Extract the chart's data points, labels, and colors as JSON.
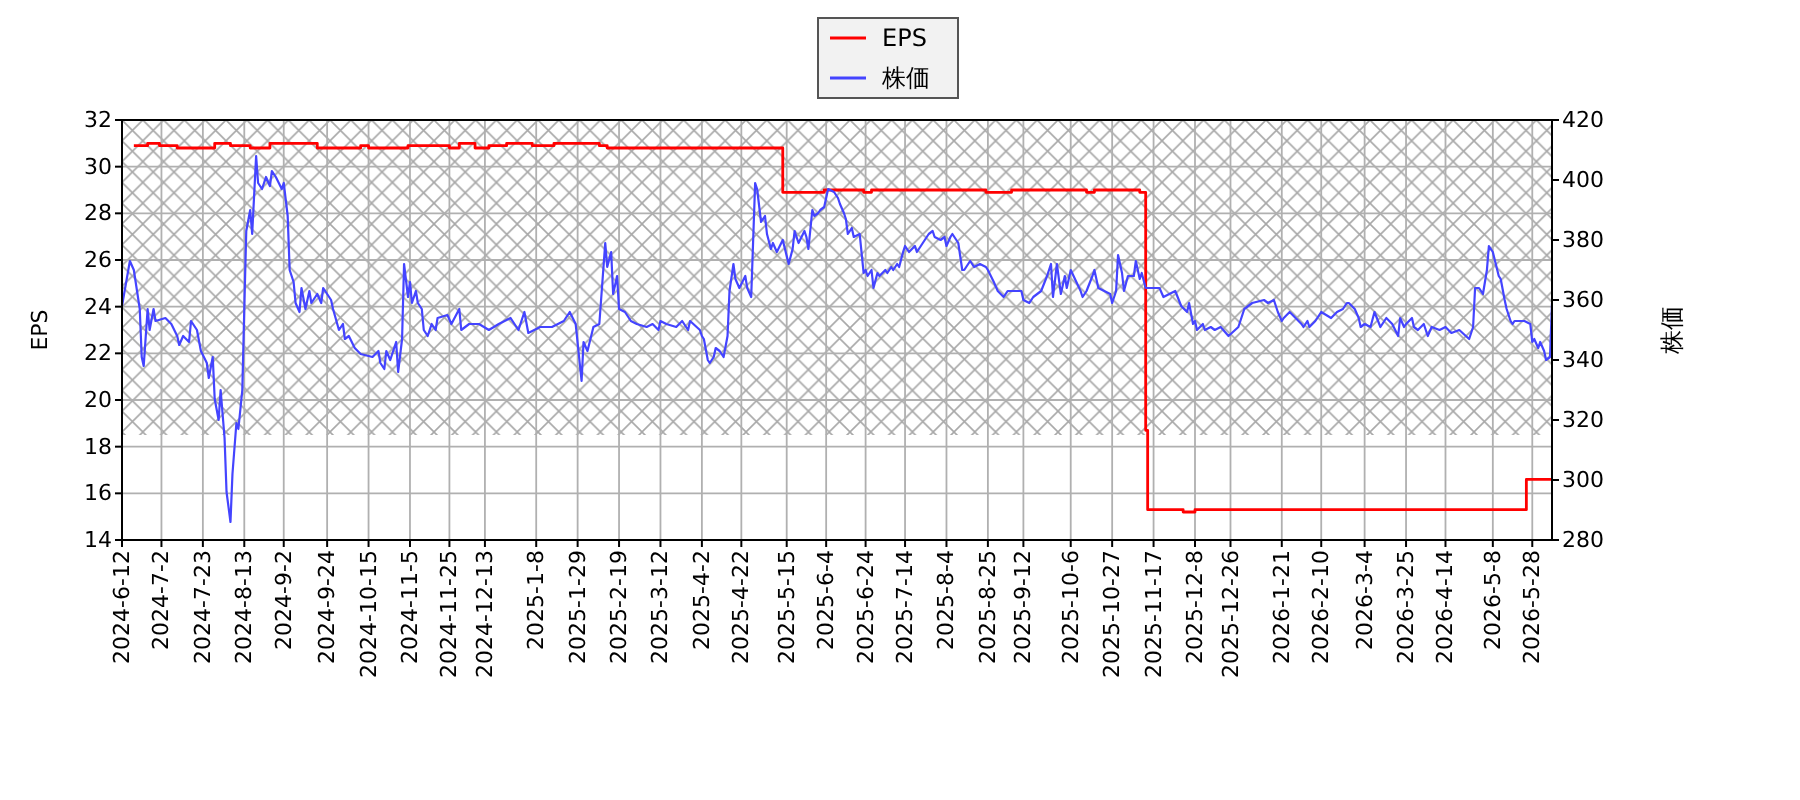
{
  "chart_data": {
    "type": "line",
    "ylabel": "EPS",
    "y2label": "株価",
    "legend": "top",
    "grid": true,
    "xlim": [
      "2024-06-12",
      "2026-06-07"
    ],
    "xticks": [
      {
        "value": "2024-06-12",
        "label": "2024-6-12"
      },
      {
        "value": "2024-07-02",
        "label": "2024-7-2"
      },
      {
        "value": "2024-07-23",
        "label": "2024-7-23"
      },
      {
        "value": "2024-08-13",
        "label": "2024-8-13"
      },
      {
        "value": "2024-09-02",
        "label": "2024-9-2"
      },
      {
        "value": "2024-09-24",
        "label": "2024-9-24"
      },
      {
        "value": "2024-10-15",
        "label": "2024-10-15"
      },
      {
        "value": "2024-11-05",
        "label": "2024-11-5"
      },
      {
        "value": "2024-11-25",
        "label": "2024-11-25"
      },
      {
        "value": "2024-12-13",
        "label": "2024-12-13"
      },
      {
        "value": "2025-01-08",
        "label": "2025-1-8"
      },
      {
        "value": "2025-01-29",
        "label": "2025-1-29"
      },
      {
        "value": "2025-02-19",
        "label": "2025-2-19"
      },
      {
        "value": "2025-03-12",
        "label": "2025-3-12"
      },
      {
        "value": "2025-04-02",
        "label": "2025-4-2"
      },
      {
        "value": "2025-04-22",
        "label": "2025-4-22"
      },
      {
        "value": "2025-05-15",
        "label": "2025-5-15"
      },
      {
        "value": "2025-06-04",
        "label": "2025-6-4"
      },
      {
        "value": "2025-06-24",
        "label": "2025-6-24"
      },
      {
        "value": "2025-07-14",
        "label": "2025-7-14"
      },
      {
        "value": "2025-08-04",
        "label": "2025-8-4"
      },
      {
        "value": "2025-08-25",
        "label": "2025-8-25"
      },
      {
        "value": "2025-09-12",
        "label": "2025-9-12"
      },
      {
        "value": "2025-10-06",
        "label": "2025-10-6"
      },
      {
        "value": "2025-10-27",
        "label": "2025-10-27"
      },
      {
        "value": "2025-11-17",
        "label": "2025-11-17"
      },
      {
        "value": "2025-12-08",
        "label": "2025-12-8"
      },
      {
        "value": "2025-12-26",
        "label": "2025-12-26"
      },
      {
        "value": "2026-01-21",
        "label": "2026-1-21"
      },
      {
        "value": "2026-02-10",
        "label": "2026-2-10"
      },
      {
        "value": "2026-03-04",
        "label": "2026-3-4"
      },
      {
        "value": "2026-03-25",
        "label": "2026-3-25"
      },
      {
        "value": "2026-04-14",
        "label": "2026-4-14"
      },
      {
        "value": "2026-05-08",
        "label": "2026-5-8"
      },
      {
        "value": "2026-05-28",
        "label": "2026-5-28"
      }
    ],
    "ylim": [
      14,
      32
    ],
    "yticks": [
      14,
      16,
      18,
      20,
      22,
      24,
      26,
      28,
      30,
      32
    ],
    "y2lim": [
      280,
      420
    ],
    "y2ticks": [
      280,
      300,
      320,
      340,
      360,
      380,
      400,
      420
    ],
    "bands": [
      {
        "axis": "y",
        "from": 18.5,
        "to": 32,
        "color": "#a8a8a8"
      }
    ],
    "series": [
      {
        "name": "EPS",
        "type": "step",
        "color": "#ff0000",
        "x": [
          "2024-06-18",
          "2024-06-25",
          "2024-07-01",
          "2024-07-10",
          "2024-07-29",
          "2024-08-06",
          "2024-08-16",
          "2024-08-26",
          "2024-09-19",
          "2024-10-11",
          "2024-10-15",
          "2024-11-04",
          "2024-11-25",
          "2024-11-30",
          "2024-12-08",
          "2024-12-15",
          "2024-12-24",
          "2025-01-06",
          "2025-01-17",
          "2025-02-09",
          "2025-02-13",
          "2025-05-13",
          "2025-06-03",
          "2025-06-23",
          "2025-06-27",
          "2025-08-24",
          "2025-09-06",
          "2025-10-14",
          "2025-10-18",
          "2025-11-10",
          "2025-11-13",
          "2025-11-14",
          "2025-12-02",
          "2025-12-08",
          "2026-05-25",
          "2026-06-07"
        ],
        "values": [
          30.9,
          31.0,
          30.9,
          30.8,
          31.0,
          30.9,
          30.8,
          31.0,
          30.8,
          30.9,
          30.8,
          30.9,
          30.8,
          31.0,
          30.8,
          30.9,
          31.0,
          30.9,
          31.0,
          30.9,
          30.8,
          28.9,
          29.0,
          28.9,
          29.0,
          28.9,
          29.0,
          28.9,
          29.0,
          28.9,
          18.7,
          15.3,
          15.2,
          15.3,
          16.6,
          16.6
        ]
      },
      {
        "name": "株価",
        "type": "line",
        "axis": "y2",
        "color": "#4444ff",
        "x": [
          "2024-06-12",
          "2024-06-16",
          "2024-06-18",
          "2024-06-21",
          "2024-06-22",
          "2024-06-23",
          "2024-06-25",
          "2024-06-26",
          "2024-06-28",
          "2024-06-29",
          "2024-07-04",
          "2024-07-07",
          "2024-07-10",
          "2024-07-11",
          "2024-07-13",
          "2024-07-16",
          "2024-07-17",
          "2024-07-20",
          "2024-07-22",
          "2024-07-25",
          "2024-07-26",
          "2024-07-28",
          "2024-07-29",
          "2024-07-31",
          "2024-08-01",
          "2024-08-03",
          "2024-08-04",
          "2024-08-06",
          "2024-08-07",
          "2024-08-09",
          "2024-08-10",
          "2024-08-12",
          "2024-08-13",
          "2024-08-14",
          "2024-08-16",
          "2024-08-17",
          "2024-08-19",
          "2024-08-20",
          "2024-08-22",
          "2024-08-24",
          "2024-08-26",
          "2024-08-27",
          "2024-08-29",
          "2024-09-01",
          "2024-09-02",
          "2024-09-04",
          "2024-09-05",
          "2024-09-07",
          "2024-09-08",
          "2024-09-10",
          "2024-09-11",
          "2024-09-13",
          "2024-09-15",
          "2024-09-16",
          "2024-09-19",
          "2024-09-21",
          "2024-09-22",
          "2024-09-26",
          "2024-09-27",
          "2024-09-30",
          "2024-10-02",
          "2024-10-03",
          "2024-10-05",
          "2024-10-08",
          "2024-10-11",
          "2024-10-17",
          "2024-10-20",
          "2024-10-21",
          "2024-10-23",
          "2024-10-24",
          "2024-10-26",
          "2024-10-29",
          "2024-10-30",
          "2024-11-01",
          "2024-11-02",
          "2024-11-04",
          "2024-11-05",
          "2024-11-06",
          "2024-11-08",
          "2024-11-09",
          "2024-11-11",
          "2024-11-12",
          "2024-11-14",
          "2024-11-16",
          "2024-11-18",
          "2024-11-19",
          "2024-11-24",
          "2024-11-26",
          "2024-11-30",
          "2024-12-01",
          "2024-12-05",
          "2024-12-10",
          "2024-12-15",
          "2024-12-20",
          "2024-12-26",
          "2024-12-30",
          "2025-01-02",
          "2025-01-04",
          "2025-01-10",
          "2025-01-16",
          "2025-01-22",
          "2025-01-25",
          "2025-01-28",
          "2025-01-31",
          "2025-02-01",
          "2025-02-03",
          "2025-02-06",
          "2025-02-09",
          "2025-02-12",
          "2025-02-13",
          "2025-02-15",
          "2025-02-16",
          "2025-02-18",
          "2025-02-19",
          "2025-02-22",
          "2025-02-25",
          "2025-02-28",
          "2025-03-05",
          "2025-03-08",
          "2025-03-11",
          "2025-03-12",
          "2025-03-15",
          "2025-03-20",
          "2025-03-23",
          "2025-03-26",
          "2025-03-27",
          "2025-04-01",
          "2025-04-02",
          "2025-04-03",
          "2025-04-05",
          "2025-04-06",
          "2025-04-08",
          "2025-04-09",
          "2025-04-11",
          "2025-04-13",
          "2025-04-15",
          "2025-04-16",
          "2025-04-18",
          "2025-04-19",
          "2025-04-21",
          "2025-04-24",
          "2025-04-25",
          "2025-04-27",
          "2025-04-29",
          "2025-04-30",
          "2025-05-02",
          "2025-05-04",
          "2025-05-05",
          "2025-05-07",
          "2025-05-08",
          "2025-05-10",
          "2025-05-13",
          "2025-05-16",
          "2025-05-18",
          "2025-05-19",
          "2025-05-21",
          "2025-05-24",
          "2025-05-25",
          "2025-05-26",
          "2025-05-28",
          "2025-05-29",
          "2025-05-31",
          "2025-06-01",
          "2025-06-03",
          "2025-06-04",
          "2025-06-05",
          "2025-06-08",
          "2025-06-10",
          "2025-06-11",
          "2025-06-13",
          "2025-06-14",
          "2025-06-15",
          "2025-06-17",
          "2025-06-18",
          "2025-06-21",
          "2025-06-23",
          "2025-06-24",
          "2025-06-25",
          "2025-06-27",
          "2025-06-28",
          "2025-06-30",
          "2025-07-01",
          "2025-07-04",
          "2025-07-05",
          "2025-07-07",
          "2025-07-08",
          "2025-07-10",
          "2025-07-11",
          "2025-07-13",
          "2025-07-14",
          "2025-07-16",
          "2025-07-19",
          "2025-07-20",
          "2025-07-22",
          "2025-07-23",
          "2025-07-25",
          "2025-07-26",
          "2025-07-28",
          "2025-07-29",
          "2025-08-01",
          "2025-08-03",
          "2025-08-04",
          "2025-08-06",
          "2025-08-07",
          "2025-08-09",
          "2025-08-10",
          "2025-08-12",
          "2025-08-13",
          "2025-08-16",
          "2025-08-18",
          "2025-08-21",
          "2025-08-24",
          "2025-08-25",
          "2025-08-28",
          "2025-08-30",
          "2025-09-02",
          "2025-09-04",
          "2025-09-07",
          "2025-09-11",
          "2025-09-12",
          "2025-09-15",
          "2025-09-17",
          "2025-09-21",
          "2025-09-24",
          "2025-09-26",
          "2025-09-27",
          "2025-09-29",
          "2025-10-01",
          "2025-10-03",
          "2025-10-04",
          "2025-10-06",
          "2025-10-11",
          "2025-10-12",
          "2025-10-14",
          "2025-10-17",
          "2025-10-18",
          "2025-10-20",
          "2025-10-23",
          "2025-10-26",
          "2025-10-27",
          "2025-10-29",
          "2025-10-30",
          "2025-11-01",
          "2025-11-02",
          "2025-11-04",
          "2025-11-07",
          "2025-11-08",
          "2025-11-10",
          "2025-11-11",
          "2025-11-13",
          "2025-11-16",
          "2025-11-20",
          "2025-11-22",
          "2025-11-25",
          "2025-11-28",
          "2025-12-01",
          "2025-12-04",
          "2025-12-05",
          "2025-12-07",
          "2025-12-08",
          "2025-12-09",
          "2025-12-12",
          "2025-12-13",
          "2025-12-16",
          "2025-12-18",
          "2025-12-21",
          "2025-12-25",
          "2025-12-30",
          "2026-01-02",
          "2026-01-06",
          "2026-01-12",
          "2026-01-14",
          "2026-01-17",
          "2026-01-19",
          "2026-01-21",
          "2026-01-22",
          "2026-01-25",
          "2026-01-28",
          "2026-01-31",
          "2026-02-01",
          "2026-02-03",
          "2026-02-04",
          "2026-02-07",
          "2026-02-10",
          "2026-02-15",
          "2026-02-18",
          "2026-02-21",
          "2026-02-23",
          "2026-02-24",
          "2026-02-27",
          "2026-03-01",
          "2026-03-02",
          "2026-03-04",
          "2026-03-07",
          "2026-03-09",
          "2026-03-12",
          "2026-03-15",
          "2026-03-18",
          "2026-03-21",
          "2026-03-22",
          "2026-03-24",
          "2026-03-25",
          "2026-03-28",
          "2026-03-29",
          "2026-03-31",
          "2026-04-03",
          "2026-04-05",
          "2026-04-07",
          "2026-04-11",
          "2026-04-14",
          "2026-04-17",
          "2026-04-21",
          "2026-04-26",
          "2026-04-28",
          "2026-04-29",
          "2026-05-01",
          "2026-05-03",
          "2026-05-05",
          "2026-05-06",
          "2026-05-08",
          "2026-05-11",
          "2026-05-12",
          "2026-05-14",
          "2026-05-15",
          "2026-05-17",
          "2026-05-18",
          "2026-05-19",
          "2026-05-24",
          "2026-05-27",
          "2026-05-28",
          "2026-05-29",
          "2026-05-31",
          "2026-06-01",
          "2026-06-03",
          "2026-06-04",
          "2026-06-06",
          "2026-06-07"
        ],
        "values": [
          358,
          373,
          370,
          357,
          341,
          338,
          357,
          350,
          357,
          353,
          354,
          352,
          348,
          345,
          348,
          346,
          353,
          350,
          343,
          339,
          334,
          341,
          327,
          320,
          330,
          314,
          296,
          286,
          302,
          319,
          317,
          330,
          357,
          383,
          390,
          382,
          408,
          399,
          397,
          401,
          398,
          403,
          401,
          397,
          399,
          388,
          370,
          366,
          359,
          356,
          364,
          357,
          363,
          359,
          362,
          359,
          364,
          360,
          357,
          350,
          352,
          347,
          348,
          344,
          342,
          341,
          343,
          339,
          337,
          343,
          340,
          346,
          336,
          347,
          372,
          361,
          366,
          359,
          363,
          359,
          357,
          350,
          348,
          352,
          350,
          354,
          355,
          352,
          357,
          350,
          352,
          352,
          350,
          352,
          354,
          350,
          356,
          349,
          351,
          351,
          353,
          356,
          352,
          333,
          346,
          343,
          351,
          352,
          379,
          371,
          376,
          362,
          368,
          357,
          356,
          353,
          352,
          351,
          352,
          350,
          353,
          352,
          351,
          353,
          350,
          353,
          350,
          348,
          347,
          340,
          339,
          341,
          344,
          343,
          341,
          348,
          363,
          372,
          367,
          364,
          368,
          364,
          361,
          399,
          397,
          386,
          388,
          382,
          377,
          379,
          376,
          380,
          372,
          377,
          383,
          379,
          383,
          381,
          377,
          390,
          388,
          389,
          390,
          391,
          394,
          397,
          396,
          394,
          392,
          389,
          387,
          382,
          384,
          381,
          382,
          369,
          370,
          368,
          370,
          364,
          369,
          368,
          370,
          369,
          371,
          370,
          372,
          371,
          376,
          378,
          376,
          378,
          376,
          378,
          379,
          381,
          382,
          383,
          381,
          380,
          381,
          378,
          381,
          382,
          380,
          379,
          370,
          370,
          373,
          371,
          372,
          371,
          370,
          366,
          363,
          361,
          363,
          363,
          363,
          360,
          359,
          361,
          363,
          368,
          372,
          361,
          372,
          362,
          368,
          364,
          370,
          363,
          361,
          363,
          368,
          370,
          364,
          363,
          362,
          359,
          363,
          375,
          369,
          363,
          368,
          368,
          373,
          367,
          369,
          364,
          364,
          364,
          361,
          362,
          363,
          358,
          356,
          359,
          352,
          353,
          350,
          352,
          350,
          351,
          350,
          351,
          348,
          351,
          357,
          359,
          360,
          359,
          360,
          356,
          353,
          354,
          356,
          354,
          352,
          351,
          353,
          351,
          353,
          356,
          354,
          356,
          357,
          359,
          359,
          357,
          354,
          351,
          352,
          351,
          356,
          351,
          354,
          352,
          348,
          354,
          351,
          352,
          354,
          351,
          350,
          352,
          348,
          351,
          350,
          351,
          349,
          350,
          347,
          351,
          364,
          364,
          362,
          370,
          378,
          376,
          368,
          367,
          360,
          357,
          353,
          352,
          353,
          353,
          352,
          346,
          347,
          344,
          346,
          343,
          340,
          341,
          359
        ]
      }
    ]
  }
}
